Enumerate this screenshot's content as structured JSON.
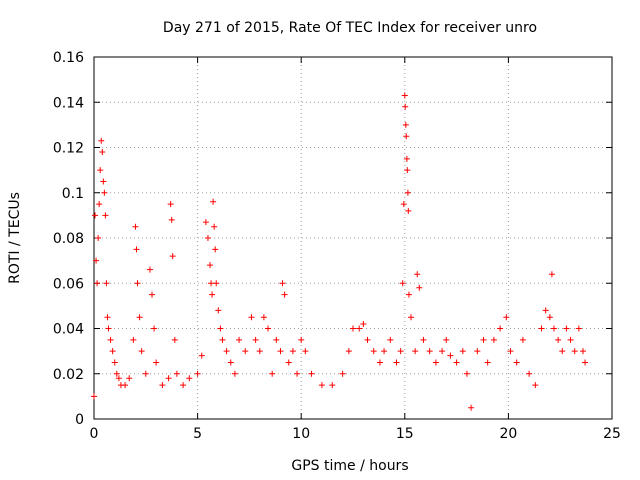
{
  "chart_data": {
    "type": "scatter",
    "title": "Day 271 of 2015, Rate Of TEC Index for receiver unro",
    "xlabel": "GPS time / hours",
    "ylabel": "ROTI / TECUs",
    "xlim": [
      0,
      25
    ],
    "ylim": [
      0,
      0.16
    ],
    "grid": true,
    "marker": "+",
    "color": "#ff0000",
    "x_ticks": [
      0,
      5,
      10,
      15,
      20,
      25
    ],
    "x_tick_labels": [
      "0",
      "5",
      "10",
      "15",
      "20",
      "25"
    ],
    "y_ticks": [
      0,
      0.02,
      0.04,
      0.06,
      0.08,
      0.1,
      0.12,
      0.14,
      0.16
    ],
    "y_tick_labels": [
      "0",
      "0.02",
      "0.04",
      "0.06",
      "0.08",
      "0.1",
      "0.12",
      "0.14",
      "0.16"
    ],
    "series": [
      {
        "points": [
          [
            0.0,
            0.01
          ],
          [
            0.05,
            0.09
          ],
          [
            0.1,
            0.07
          ],
          [
            0.15,
            0.06
          ],
          [
            0.2,
            0.08
          ],
          [
            0.25,
            0.095
          ],
          [
            0.3,
            0.11
          ],
          [
            0.35,
            0.123
          ],
          [
            0.4,
            0.118
          ],
          [
            0.45,
            0.105
          ],
          [
            0.5,
            0.1
          ],
          [
            0.55,
            0.09
          ],
          [
            0.6,
            0.06
          ],
          [
            0.65,
            0.045
          ],
          [
            0.7,
            0.04
          ],
          [
            0.8,
            0.035
          ],
          [
            0.9,
            0.03
          ],
          [
            1.0,
            0.025
          ],
          [
            1.1,
            0.02
          ],
          [
            1.2,
            0.018
          ],
          [
            1.3,
            0.015
          ],
          [
            1.5,
            0.015
          ],
          [
            1.7,
            0.018
          ],
          [
            1.9,
            0.035
          ],
          [
            2.0,
            0.085
          ],
          [
            2.05,
            0.075
          ],
          [
            2.1,
            0.06
          ],
          [
            2.2,
            0.045
          ],
          [
            2.3,
            0.03
          ],
          [
            2.5,
            0.02
          ],
          [
            2.7,
            0.066
          ],
          [
            2.8,
            0.055
          ],
          [
            2.9,
            0.04
          ],
          [
            3.0,
            0.025
          ],
          [
            3.3,
            0.015
          ],
          [
            3.6,
            0.018
          ],
          [
            3.7,
            0.095
          ],
          [
            3.75,
            0.088
          ],
          [
            3.8,
            0.072
          ],
          [
            3.9,
            0.035
          ],
          [
            4.0,
            0.02
          ],
          [
            4.3,
            0.015
          ],
          [
            4.6,
            0.018
          ],
          [
            5.0,
            0.02
          ],
          [
            5.2,
            0.028
          ],
          [
            5.4,
            0.087
          ],
          [
            5.5,
            0.08
          ],
          [
            5.6,
            0.068
          ],
          [
            5.65,
            0.06
          ],
          [
            5.7,
            0.055
          ],
          [
            5.75,
            0.096
          ],
          [
            5.8,
            0.085
          ],
          [
            5.85,
            0.075
          ],
          [
            5.9,
            0.06
          ],
          [
            6.0,
            0.048
          ],
          [
            6.1,
            0.04
          ],
          [
            6.2,
            0.035
          ],
          [
            6.4,
            0.03
          ],
          [
            6.6,
            0.025
          ],
          [
            6.8,
            0.02
          ],
          [
            7.0,
            0.035
          ],
          [
            7.3,
            0.03
          ],
          [
            7.6,
            0.045
          ],
          [
            7.8,
            0.035
          ],
          [
            8.0,
            0.03
          ],
          [
            8.2,
            0.045
          ],
          [
            8.4,
            0.04
          ],
          [
            8.6,
            0.02
          ],
          [
            8.8,
            0.035
          ],
          [
            9.0,
            0.03
          ],
          [
            9.1,
            0.06
          ],
          [
            9.2,
            0.055
          ],
          [
            9.4,
            0.025
          ],
          [
            9.6,
            0.03
          ],
          [
            9.8,
            0.02
          ],
          [
            10.0,
            0.035
          ],
          [
            10.2,
            0.03
          ],
          [
            10.5,
            0.02
          ],
          [
            11.0,
            0.015
          ],
          [
            11.5,
            0.015
          ],
          [
            12.0,
            0.02
          ],
          [
            12.3,
            0.03
          ],
          [
            12.5,
            0.04
          ],
          [
            12.8,
            0.04
          ],
          [
            13.0,
            0.042
          ],
          [
            13.2,
            0.035
          ],
          [
            13.5,
            0.03
          ],
          [
            13.8,
            0.025
          ],
          [
            14.0,
            0.03
          ],
          [
            14.3,
            0.035
          ],
          [
            14.6,
            0.025
          ],
          [
            14.8,
            0.03
          ],
          [
            14.9,
            0.06
          ],
          [
            14.95,
            0.095
          ],
          [
            15.0,
            0.143
          ],
          [
            15.02,
            0.138
          ],
          [
            15.05,
            0.13
          ],
          [
            15.07,
            0.125
          ],
          [
            15.1,
            0.115
          ],
          [
            15.12,
            0.11
          ],
          [
            15.15,
            0.1
          ],
          [
            15.17,
            0.092
          ],
          [
            15.2,
            0.055
          ],
          [
            15.3,
            0.045
          ],
          [
            15.5,
            0.03
          ],
          [
            15.6,
            0.064
          ],
          [
            15.7,
            0.058
          ],
          [
            15.9,
            0.035
          ],
          [
            16.2,
            0.03
          ],
          [
            16.5,
            0.025
          ],
          [
            16.8,
            0.03
          ],
          [
            17.0,
            0.035
          ],
          [
            17.2,
            0.028
          ],
          [
            17.5,
            0.025
          ],
          [
            17.8,
            0.03
          ],
          [
            18.0,
            0.02
          ],
          [
            18.2,
            0.005
          ],
          [
            18.5,
            0.03
          ],
          [
            18.8,
            0.035
          ],
          [
            19.0,
            0.025
          ],
          [
            19.3,
            0.035
          ],
          [
            19.6,
            0.04
          ],
          [
            19.9,
            0.045
          ],
          [
            20.1,
            0.03
          ],
          [
            20.4,
            0.025
          ],
          [
            20.7,
            0.035
          ],
          [
            21.0,
            0.02
          ],
          [
            21.3,
            0.015
          ],
          [
            21.6,
            0.04
          ],
          [
            21.8,
            0.048
          ],
          [
            22.0,
            0.045
          ],
          [
            22.1,
            0.064
          ],
          [
            22.2,
            0.04
          ],
          [
            22.4,
            0.035
          ],
          [
            22.6,
            0.03
          ],
          [
            22.8,
            0.04
          ],
          [
            23.0,
            0.035
          ],
          [
            23.2,
            0.03
          ],
          [
            23.4,
            0.04
          ],
          [
            23.6,
            0.03
          ],
          [
            23.7,
            0.025
          ]
        ]
      }
    ]
  }
}
